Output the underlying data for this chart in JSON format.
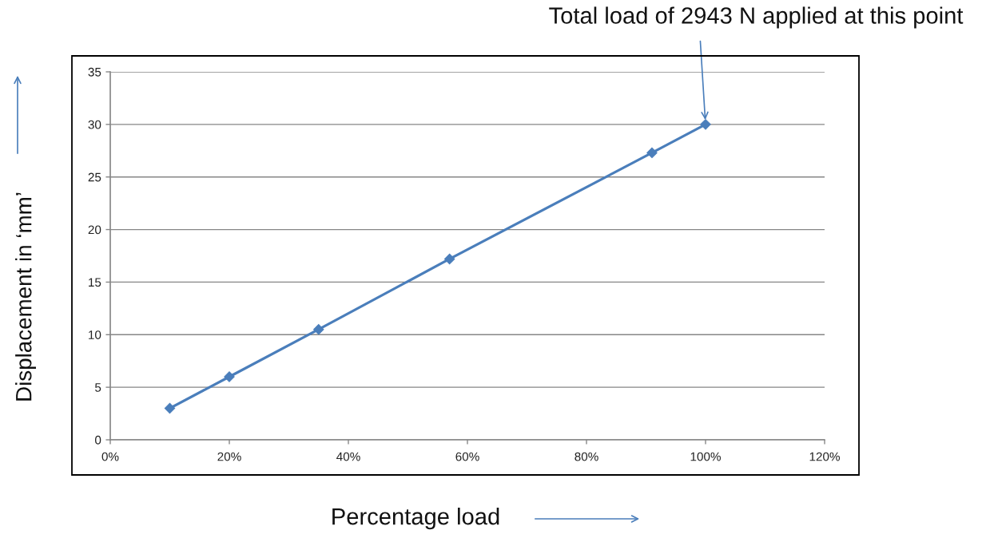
{
  "chart_data": {
    "type": "line",
    "xlabel": "Percentage load",
    "ylabel": "Displacement in ‘mm’",
    "annotations": [
      {
        "text": "Total load of 2943 N applied at this point",
        "x": 100,
        "y": 30
      }
    ],
    "x": [
      10,
      20,
      35,
      57,
      91,
      100
    ],
    "series": [
      {
        "color": "#4a7ebb",
        "values": [
          3,
          6,
          10.5,
          17.2,
          27.3,
          30
        ]
      }
    ],
    "xlim": [
      0,
      120
    ],
    "xticks": [
      {
        "value": 0,
        "label": "0%"
      },
      {
        "value": 20,
        "label": "20%"
      },
      {
        "value": 40,
        "label": "40%"
      },
      {
        "value": 60,
        "label": "60%"
      },
      {
        "value": 80,
        "label": "80%"
      },
      {
        "value": 100,
        "label": "100%"
      },
      {
        "value": 120,
        "label": "120%"
      }
    ],
    "ylim": [
      0,
      35
    ],
    "yticks": [
      0,
      5,
      10,
      15,
      20,
      25,
      30,
      35
    ],
    "grid": "y",
    "marker": "diamond",
    "line_style": "solid"
  }
}
